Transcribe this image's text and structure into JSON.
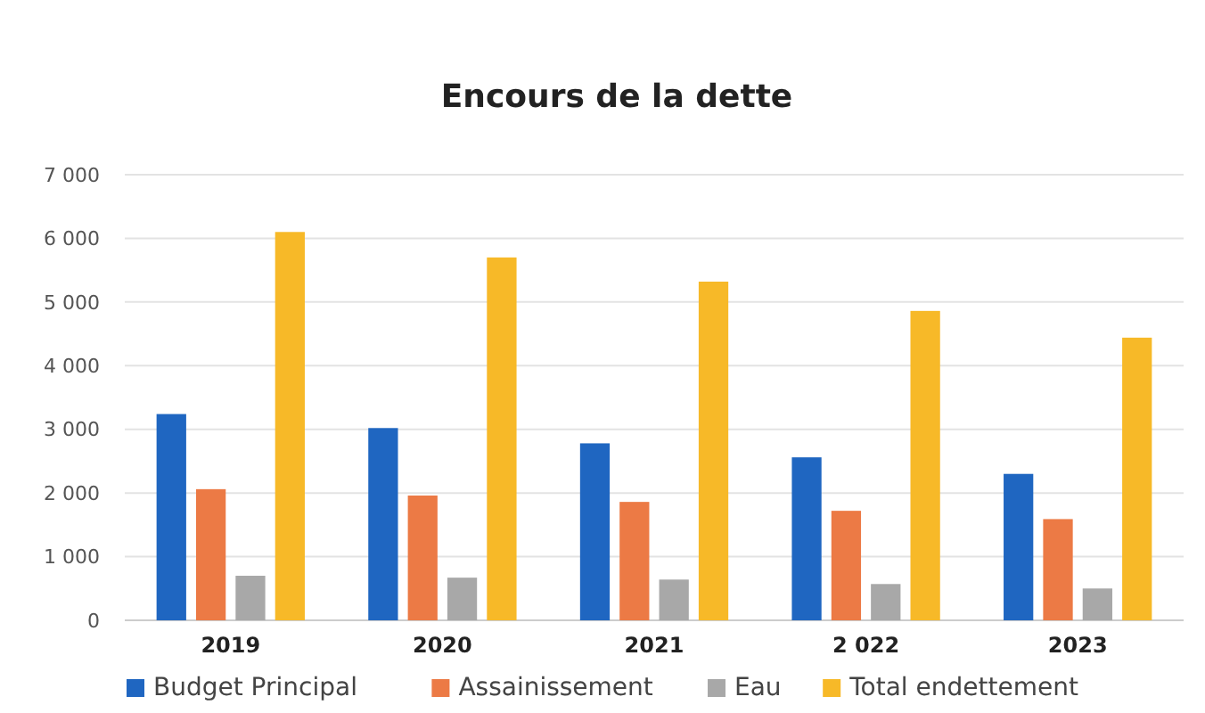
{
  "chart_data": {
    "type": "bar",
    "title": "Encours de la dette",
    "categories": [
      "2019",
      "2020",
      "2021",
      "2 022",
      "2023"
    ],
    "series": [
      {
        "name": "Budget Principal",
        "color": "#1f66c1",
        "values": [
          3240,
          3020,
          2780,
          2560,
          2300
        ]
      },
      {
        "name": "Assainissement",
        "color": "#ec7a45",
        "values": [
          2060,
          1960,
          1860,
          1720,
          1590
        ]
      },
      {
        "name": "Eau",
        "color": "#a8a8a8",
        "values": [
          700,
          670,
          640,
          570,
          500
        ]
      },
      {
        "name": "Total endettement",
        "color": "#f7b928",
        "values": [
          6100,
          5700,
          5320,
          4860,
          4440
        ]
      }
    ],
    "ylim": [
      0,
      7000
    ],
    "yticks": [
      0,
      {
        "value": 1000,
        "label": "1 000"
      },
      {
        "value": 2000,
        "label": "2 000"
      },
      {
        "value": 3000,
        "label": "3 000"
      },
      {
        "value": 4000,
        "label": "4 000"
      },
      {
        "value": 5000,
        "label": "5 000"
      },
      {
        "value": 6000,
        "label": "6 000"
      },
      {
        "value": 7000,
        "label": "7 000"
      }
    ],
    "grid": "y",
    "legend": "bottom"
  }
}
